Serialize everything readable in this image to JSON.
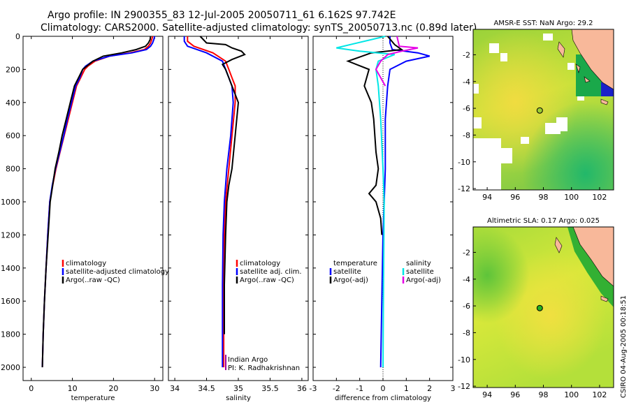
{
  "title_line1": "Argo profile: IN 2900355_83 12-Jul-2005 20050711_61 6.162S 97.742E",
  "title_line2": "Climatology: CARS2000. Satellite-adjusted climatology: synTS_20050713.nc (0.89d later)",
  "side_stamp": "CSIRO 04-Aug-2005 00:18:51",
  "colors": {
    "climatology": "#ff0000",
    "satellite": "#0000ff",
    "argo": "#000000",
    "salinity": "#00e6e6",
    "salinity_argo": "#e600e6",
    "land": "#f8b89a",
    "dot_sst": "#9acc33",
    "dot_sla": "#22b022"
  },
  "chart_data": [
    {
      "type": "line",
      "panel": "temperature",
      "xlabel": "temperature",
      "ylabel": "",
      "xlim": [
        -2,
        32
      ],
      "ylim": [
        2080,
        0
      ],
      "xticks": [
        0,
        10,
        20,
        30
      ],
      "yticks": [
        0,
        200,
        400,
        600,
        800,
        1000,
        1200,
        1400,
        1600,
        1800,
        2000
      ],
      "legend_placement": "center-right",
      "legend": [
        "climatology",
        "satellite-adjusted climatology",
        "Argo(..raw -QC)"
      ],
      "series": [
        {
          "name": "climatology",
          "color": "climatology",
          "x": [
            29.5,
            29.3,
            29.0,
            28.5,
            27.5,
            24.0,
            19.0,
            15.5,
            13.8,
            13.0,
            12.0,
            11.0,
            10.0,
            9.0,
            8.0,
            7.0,
            6.0,
            5.2,
            4.5,
            4.0,
            3.6,
            3.2,
            2.9,
            2.7
          ],
          "y": [
            0,
            20,
            40,
            60,
            80,
            100,
            120,
            150,
            180,
            200,
            250,
            300,
            400,
            500,
            600,
            700,
            800,
            900,
            1000,
            1200,
            1400,
            1600,
            1800,
            2000
          ]
        },
        {
          "name": "satellite-adjusted climatology",
          "color": "satellite",
          "x": [
            30.0,
            29.8,
            29.5,
            29.0,
            28.0,
            24.5,
            19.0,
            15.0,
            13.2,
            12.5,
            11.8,
            10.8,
            9.8,
            8.8,
            7.9,
            6.9,
            5.9,
            5.1,
            4.5,
            4.0,
            3.6,
            3.2,
            2.9,
            2.7
          ],
          "y": [
            0,
            20,
            40,
            60,
            80,
            100,
            120,
            150,
            180,
            200,
            250,
            300,
            400,
            500,
            600,
            700,
            800,
            900,
            1000,
            1200,
            1400,
            1600,
            1800,
            2000
          ]
        },
        {
          "name": "Argo(..raw -QC)",
          "color": "argo",
          "x": [
            29.0,
            28.9,
            28.5,
            27.8,
            25.5,
            22.0,
            17.5,
            15.0,
            13.5,
            12.5,
            11.5,
            10.5,
            9.5,
            8.5,
            7.5,
            6.7,
            5.8,
            5.2,
            4.6,
            4.1,
            3.6,
            3.2,
            2.9,
            2.7
          ],
          "y": [
            0,
            20,
            40,
            60,
            80,
            100,
            120,
            150,
            180,
            200,
            250,
            300,
            400,
            500,
            600,
            700,
            800,
            900,
            1000,
            1200,
            1400,
            1600,
            1800,
            2000
          ]
        }
      ]
    },
    {
      "type": "line",
      "panel": "salinity",
      "xlabel": "salinity",
      "ylabel": "",
      "xlim": [
        33.9,
        36.1
      ],
      "ylim": [
        2080,
        0
      ],
      "xticks": [
        34,
        34.5,
        35,
        35.5,
        36
      ],
      "xtick_labels": [
        "34",
        "34.5",
        "35",
        "35.5",
        "36"
      ],
      "legend_placement": "center-right",
      "legend": [
        "climatology",
        "satellite adj. clim.",
        "Argo(..raw -QC)"
      ],
      "annotation": [
        "Indian Argo",
        "PI: K. Radhakrishnan"
      ],
      "series": [
        {
          "name": "climatology",
          "color": "climatology",
          "x": [
            34.2,
            34.2,
            34.3,
            34.6,
            34.8,
            34.85,
            34.9,
            34.95,
            34.95,
            34.9,
            34.85,
            34.8,
            34.78,
            34.77,
            34.77,
            34.77
          ],
          "y": [
            0,
            30,
            60,
            100,
            150,
            200,
            250,
            300,
            400,
            600,
            800,
            1000,
            1200,
            1500,
            1800,
            2000
          ]
        },
        {
          "name": "satellite adj. clim.",
          "color": "satellite",
          "x": [
            34.15,
            34.15,
            34.2,
            34.5,
            34.75,
            34.8,
            34.85,
            34.9,
            34.92,
            34.88,
            34.82,
            34.78,
            34.76,
            34.75,
            34.75,
            34.75
          ],
          "y": [
            0,
            30,
            60,
            100,
            150,
            200,
            250,
            300,
            400,
            600,
            800,
            1000,
            1200,
            1500,
            1800,
            2000
          ]
        },
        {
          "name": "Argo(..raw -QC)",
          "color": "argo",
          "x": [
            34.4,
            34.5,
            34.8,
            34.9,
            35.05,
            35.1,
            34.9,
            34.75,
            34.8,
            34.85,
            34.9,
            35.0,
            34.95,
            34.9,
            34.85,
            34.82,
            34.8,
            34.78,
            34.78
          ],
          "y": [
            0,
            40,
            50,
            70,
            90,
            110,
            140,
            170,
            200,
            250,
            300,
            400,
            600,
            800,
            900,
            1000,
            1200,
            1500,
            1800
          ]
        }
      ]
    },
    {
      "type": "line",
      "panel": "difference",
      "xlabel": "difference from climatology",
      "ylabel": "",
      "xlim": [
        -3,
        3
      ],
      "ylim": [
        2080,
        0
      ],
      "xticks": [
        -3,
        -2,
        -1,
        0,
        1,
        2,
        3
      ],
      "legend_placement": "center",
      "legend_left": [
        "temperature",
        "satellite",
        "Argo(-adj)"
      ],
      "legend_right": [
        "salinity",
        "satellite",
        "Argo(-adj)"
      ],
      "series": [
        {
          "name": "temperature satellite",
          "color": "satellite",
          "x": [
            0.3,
            0.3,
            0.4,
            1.5,
            2.0,
            1.0,
            0.3,
            0.2,
            0.1,
            0.1,
            0.05,
            0.0,
            -0.05,
            -0.1
          ],
          "y": [
            0,
            40,
            80,
            100,
            120,
            150,
            200,
            300,
            500,
            800,
            1000,
            1200,
            1600,
            2000
          ]
        },
        {
          "name": "temperature Argo(-adj)",
          "color": "argo",
          "x": [
            0.2,
            0.5,
            0.8,
            -0.5,
            -1.5,
            -0.6,
            -0.8,
            -0.5,
            -0.4,
            -0.3,
            -0.2,
            -0.3,
            -0.6,
            -0.3,
            -0.1,
            -0.05
          ],
          "y": [
            0,
            50,
            80,
            100,
            150,
            200,
            300,
            400,
            500,
            700,
            800,
            900,
            950,
            1000,
            1100,
            1200
          ]
        },
        {
          "name": "salinity satellite",
          "color": "salinity",
          "x": [
            0.1,
            -2.0,
            -1.0,
            0.5,
            -0.2,
            -0.3,
            -0.2,
            -0.1,
            0.0,
            0.05,
            0.02,
            0.0
          ],
          "y": [
            0,
            70,
            90,
            110,
            150,
            200,
            300,
            500,
            800,
            1000,
            1500,
            2000
          ]
        },
        {
          "name": "salinity Argo(-adj)",
          "color": "salinity_argo",
          "x": [
            0.6,
            0.7,
            1.5,
            0.8,
            0.2,
            -0.1,
            -0.3,
            -0.1,
            0.1
          ],
          "y": [
            0,
            60,
            70,
            90,
            110,
            150,
            200,
            250,
            300
          ]
        }
      ]
    },
    {
      "type": "heatmap",
      "panel": "sst_map",
      "title": "AMSR-E SST: NaN Argo: 29.2",
      "xlim": [
        93,
        103
      ],
      "ylim": [
        -12.1,
        -0.1
      ],
      "xticks": [
        94,
        96,
        98,
        100,
        102
      ],
      "yticks": [
        -2,
        -4,
        -6,
        -8,
        -10,
        -12
      ],
      "argo_point": {
        "lon": 97.742,
        "lat": -6.162
      }
    },
    {
      "type": "heatmap",
      "panel": "sla_map",
      "title": "Altimetric SLA: 0.17 Argo: 0.025",
      "xlim": [
        93,
        103
      ],
      "ylim": [
        -12.1,
        -0.1
      ],
      "xticks": [
        94,
        96,
        98,
        100,
        102
      ],
      "yticks": [
        -2,
        -4,
        -6,
        -8,
        -10,
        -12
      ],
      "argo_point": {
        "lon": 97.742,
        "lat": -6.162
      }
    }
  ]
}
